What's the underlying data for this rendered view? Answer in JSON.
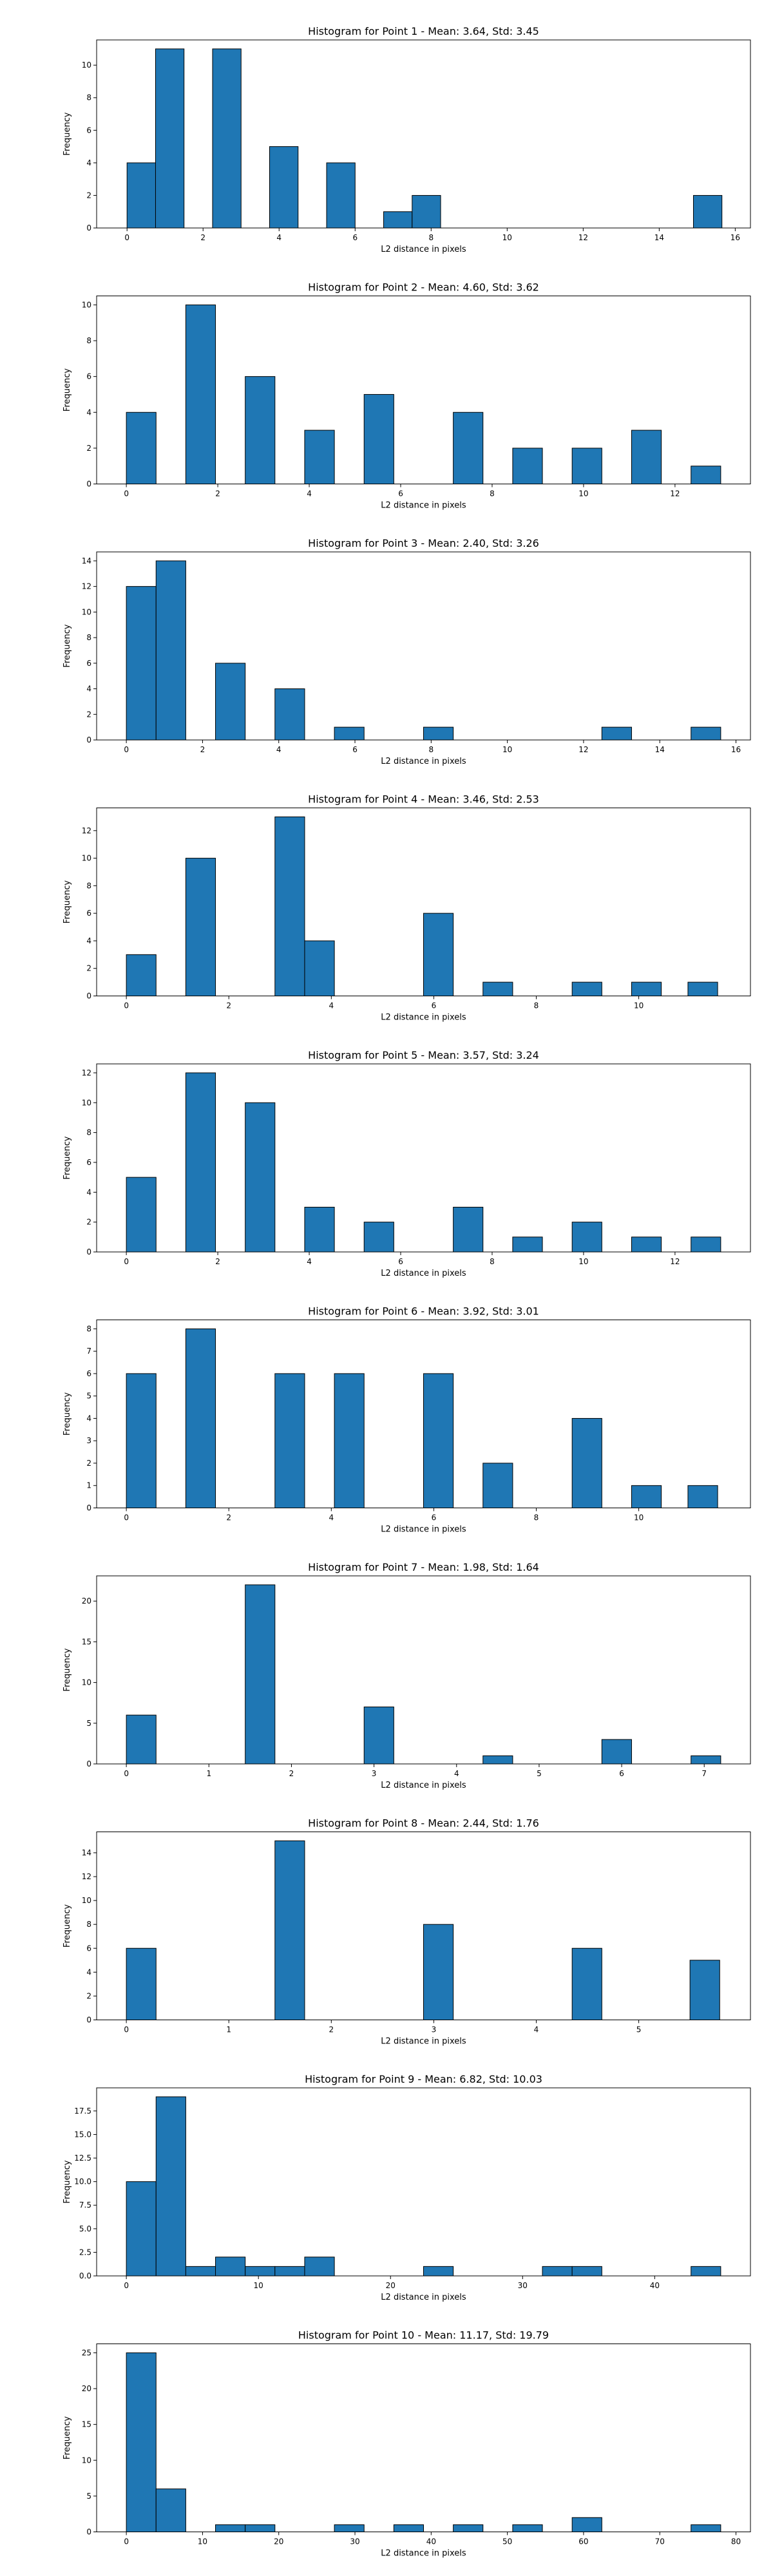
{
  "figure": {
    "bar_color": "#1f77b4",
    "edge_color": "#000000",
    "background": "#ffffff"
  },
  "chart_data": [
    {
      "type": "bar",
      "title": "Histogram for Point 1 - Mean: 3.64, Std: 3.45",
      "xlabel": "L2 distance in pixels",
      "ylabel": "Frequency",
      "bin_width": 0.75,
      "x": [
        0,
        0.75,
        2.25,
        3.75,
        5.25,
        6.75,
        7.5,
        14.9
      ],
      "values": [
        4,
        11,
        11,
        5,
        4,
        1,
        2,
        2
      ],
      "xlim": [
        -0.8,
        16.4
      ],
      "ylim": [
        0,
        11.55
      ],
      "xticks": [
        "0",
        "2",
        "4",
        "6",
        "8",
        "10",
        "12",
        "14",
        "16"
      ],
      "yticks": [
        "0",
        "2",
        "4",
        "6",
        "8",
        "10"
      ],
      "grid": false
    },
    {
      "type": "bar",
      "title": "Histogram for Point 2 - Mean: 4.60, Std: 3.62",
      "xlabel": "L2 distance in pixels",
      "ylabel": "Frequency",
      "bin_width": 0.65,
      "x": [
        0,
        1.3,
        2.6,
        3.9,
        5.2,
        7.15,
        8.45,
        9.75,
        11.05,
        12.35
      ],
      "values": [
        4,
        10,
        6,
        3,
        5,
        4,
        2,
        2,
        3,
        1
      ],
      "xlim": [
        -0.65,
        13.65
      ],
      "ylim": [
        0,
        10.5
      ],
      "xticks": [
        "0",
        "2",
        "4",
        "6",
        "8",
        "10",
        "12"
      ],
      "yticks": [
        "0",
        "2",
        "4",
        "6",
        "8",
        "10"
      ],
      "grid": false
    },
    {
      "type": "bar",
      "title": "Histogram for Point 3 - Mean: 2.40, Std: 3.26",
      "xlabel": "L2 distance in pixels",
      "ylabel": "Frequency",
      "bin_width": 0.78,
      "x": [
        0,
        0.78,
        2.34,
        3.9,
        5.46,
        7.8,
        12.48,
        14.82
      ],
      "values": [
        12,
        14,
        6,
        4,
        1,
        1,
        1,
        1
      ],
      "xlim": [
        -0.78,
        16.38
      ],
      "ylim": [
        0,
        14.7
      ],
      "xticks": [
        "0",
        "2",
        "4",
        "6",
        "8",
        "10",
        "12",
        "14",
        "16"
      ],
      "yticks": [
        "0",
        "2",
        "4",
        "6",
        "8",
        "10",
        "12",
        "14"
      ],
      "grid": false
    },
    {
      "type": "bar",
      "title": "Histogram for Point 4 - Mean: 3.46, Std: 2.53",
      "xlabel": "L2 distance in pixels",
      "ylabel": "Frequency",
      "bin_width": 0.58,
      "x": [
        0,
        1.16,
        2.9,
        3.48,
        5.8,
        6.96,
        8.7,
        9.86,
        10.96
      ],
      "values": [
        3,
        10,
        13,
        4,
        6,
        1,
        1,
        1,
        1
      ],
      "xlim": [
        -0.58,
        12.18
      ],
      "ylim": [
        0,
        13.65
      ],
      "xticks": [
        "0",
        "2",
        "4",
        "6",
        "8",
        "10"
      ],
      "yticks": [
        "0",
        "2",
        "4",
        "6",
        "8",
        "10",
        "12"
      ],
      "grid": false
    },
    {
      "type": "bar",
      "title": "Histogram for Point 5 - Mean: 3.57, Std: 3.24",
      "xlabel": "L2 distance in pixels",
      "ylabel": "Frequency",
      "bin_width": 0.65,
      "x": [
        0,
        1.3,
        2.6,
        3.9,
        5.2,
        7.15,
        8.45,
        9.75,
        11.05,
        12.35
      ],
      "values": [
        5,
        12,
        10,
        3,
        2,
        3,
        1,
        2,
        1,
        1
      ],
      "xlim": [
        -0.65,
        13.65
      ],
      "ylim": [
        0,
        12.6
      ],
      "xticks": [
        "0",
        "2",
        "4",
        "6",
        "8",
        "10",
        "12"
      ],
      "yticks": [
        "0",
        "2",
        "4",
        "6",
        "8",
        "10",
        "12"
      ],
      "grid": false
    },
    {
      "type": "bar",
      "title": "Histogram for Point 6 - Mean: 3.92, Std: 3.01",
      "xlabel": "L2 distance in pixels",
      "ylabel": "Frequency",
      "bin_width": 0.58,
      "x": [
        0,
        1.16,
        2.9,
        4.06,
        5.8,
        6.96,
        8.7,
        9.86,
        10.96
      ],
      "values": [
        6,
        8,
        6,
        6,
        6,
        2,
        4,
        1,
        1
      ],
      "xlim": [
        -0.58,
        12.18
      ],
      "ylim": [
        0,
        8.4
      ],
      "xticks": [
        "0",
        "2",
        "4",
        "6",
        "8",
        "10"
      ],
      "yticks": [
        "0",
        "1",
        "2",
        "3",
        "4",
        "5",
        "6",
        "7",
        "8"
      ],
      "grid": false
    },
    {
      "type": "bar",
      "title": "Histogram for Point 7 - Mean: 1.98, Std: 1.64",
      "xlabel": "L2 distance in pixels",
      "ylabel": "Frequency",
      "bin_width": 0.36,
      "x": [
        0,
        1.44,
        2.88,
        4.32,
        5.76,
        6.84
      ],
      "values": [
        6,
        22,
        7,
        1,
        3,
        1
      ],
      "xlim": [
        -0.36,
        7.56
      ],
      "ylim": [
        0,
        23.1
      ],
      "xticks": [
        "0",
        "1",
        "2",
        "3",
        "4",
        "5",
        "6",
        "7"
      ],
      "yticks": [
        "0",
        "5",
        "10",
        "15",
        "20"
      ],
      "grid": false
    },
    {
      "type": "bar",
      "title": "Histogram for Point 8 - Mean: 2.44, Std: 1.76",
      "xlabel": "L2 distance in pixels",
      "ylabel": "Frequency",
      "bin_width": 0.29,
      "x": [
        0,
        1.45,
        2.9,
        4.35,
        5.5
      ],
      "values": [
        6,
        15,
        8,
        6,
        5
      ],
      "xlim": [
        -0.29,
        6.09
      ],
      "ylim": [
        0,
        15.75
      ],
      "xticks": [
        "0",
        "1",
        "2",
        "3",
        "4",
        "5"
      ],
      "yticks": [
        "0",
        "2",
        "4",
        "6",
        "8",
        "10",
        "12",
        "14"
      ],
      "grid": false
    },
    {
      "type": "bar",
      "title": "Histogram for Point 9 - Mean: 6.82, Std: 10.03",
      "xlabel": "L2 distance in pixels",
      "ylabel": "Frequency",
      "bin_width": 2.25,
      "x": [
        0,
        2.25,
        4.5,
        6.75,
        9,
        11.25,
        13.5,
        22.5,
        31.5,
        33.75,
        42.75
      ],
      "values": [
        10,
        19,
        1,
        2,
        1,
        1,
        2,
        1,
        1,
        1,
        1
      ],
      "xlim": [
        -2.25,
        47.25
      ],
      "ylim": [
        0,
        19.95
      ],
      "xticks": [
        "0",
        "10",
        "20",
        "30",
        "40"
      ],
      "yticks": [
        "0.0",
        "2.5",
        "5.0",
        "7.5",
        "10.0",
        "12.5",
        "15.0",
        "17.5"
      ],
      "grid": false
    },
    {
      "type": "bar",
      "title": "Histogram for Point 10 - Mean: 11.17, Std: 19.79",
      "xlabel": "L2 distance in pixels",
      "ylabel": "Frequency",
      "bin_width": 3.9,
      "x": [
        0,
        3.9,
        11.7,
        15.6,
        27.3,
        35.1,
        42.9,
        50.7,
        58.5,
        74.1
      ],
      "values": [
        25,
        6,
        1,
        1,
        1,
        1,
        1,
        1,
        2,
        1
      ],
      "xlim": [
        -3.9,
        81.9
      ],
      "ylim": [
        0,
        26.25
      ],
      "xticks": [
        "0",
        "10",
        "20",
        "30",
        "40",
        "50",
        "60",
        "70",
        "80"
      ],
      "yticks": [
        "0",
        "5",
        "10",
        "15",
        "20",
        "25"
      ],
      "grid": false
    }
  ]
}
